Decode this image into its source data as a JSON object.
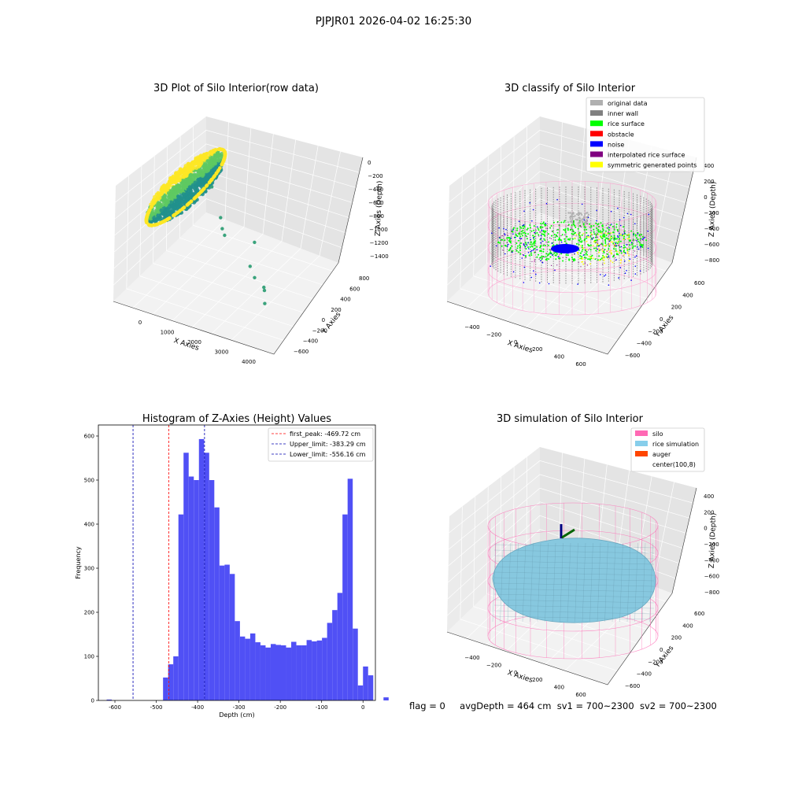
{
  "suptitle": "PJPJR01 2026-04-02 16:25:30",
  "footer": {
    "flag": "flag = 0",
    "avg": "avgDepth = 464 cm",
    "sv1": "sv1 = 700~2300",
    "sv2": "sv2 = 700~2300"
  },
  "colors": {
    "grid": "#d9d9d9",
    "pane_left": "#ebebeb",
    "pane_right": "#e4e4e4",
    "pane_floor": "#f2f2f2"
  },
  "chart_data": [
    {
      "type": "scatter",
      "title": "3D Plot of Silo Interior(row data)",
      "xlabel": "X Axies",
      "ylabel": "Y Axies",
      "zlabel": "Z Axies (Depth)",
      "x_ticks": [
        "0",
        "1000",
        "2000",
        "3000",
        "4000"
      ],
      "y_ticks": [
        "−600",
        "−400",
        "−200",
        "0",
        "200",
        "400",
        "600",
        "800"
      ],
      "z_ticks": [
        "0",
        "−200",
        "−400",
        "−600",
        "−800",
        "−1000",
        "−1200",
        "−1400"
      ],
      "colormap": [
        "#440154",
        "#21918c",
        "#5ec962",
        "#fde725"
      ],
      "outliers": [
        {
          "x": 1250,
          "y": 150,
          "z": -320
        },
        {
          "x": 1600,
          "y": 120,
          "z": -820
        },
        {
          "x": 1700,
          "y": 100,
          "z": -880
        },
        {
          "x": 2300,
          "y": 250,
          "z": -1000
        },
        {
          "x": 2500,
          "y": 60,
          "z": -1150
        },
        {
          "x": 2800,
          "y": -40,
          "z": -1180
        },
        {
          "x": 3100,
          "y": -60,
          "z": -1250
        },
        {
          "x": 3150,
          "y": -80,
          "z": -1270
        },
        {
          "x": 3400,
          "y": -220,
          "z": -1300
        },
        {
          "x": 900,
          "y": 500,
          "z": -1080
        }
      ]
    },
    {
      "type": "scatter",
      "title": "3D classify of Silo Interior",
      "xlabel": "X Axies",
      "ylabel": "Y Axies",
      "zlabel": "Z Axies (Depth)",
      "x_ticks": [
        "−400",
        "−200",
        "0",
        "200",
        "400",
        "600"
      ],
      "y_ticks": [
        "−600",
        "−400",
        "−200",
        "0",
        "200",
        "400",
        "600"
      ],
      "z_ticks": [
        "400",
        "200",
        "0",
        "−200",
        "−400",
        "−600",
        "−800"
      ],
      "legend": [
        {
          "label": "original data",
          "color": "#b0b0b0"
        },
        {
          "label": "inner wall",
          "color": "#808080"
        },
        {
          "label": "rice surface",
          "color": "#00ff00"
        },
        {
          "label": "obstacle",
          "color": "#ff0000"
        },
        {
          "label": "noise",
          "color": "#0000ff"
        },
        {
          "label": "interpolated rice surface",
          "color": "#800080"
        },
        {
          "label": "symmetric generated points",
          "color": "#ffff00"
        }
      ],
      "legend_loc": "upper right"
    },
    {
      "type": "bar",
      "title": "Histogram of Z-Axies (Height) Values",
      "xlabel": "Depth (cm)",
      "ylabel": "Frequency",
      "xlim": [
        -640,
        30
      ],
      "ylim": [
        0,
        625
      ],
      "x_ticks": [
        -600,
        -500,
        -400,
        -300,
        -200,
        -100,
        0
      ],
      "y_ticks": [
        0,
        100,
        200,
        300,
        400,
        500,
        600
      ],
      "bin_start": -620,
      "bin_width": 12.4,
      "values": [
        2,
        0,
        0,
        0,
        0,
        0,
        0,
        0,
        0,
        0,
        0,
        52,
        82,
        100,
        422,
        562,
        508,
        500,
        593,
        562,
        500,
        438,
        306,
        308,
        287,
        180,
        145,
        140,
        152,
        132,
        125,
        120,
        128,
        126,
        125,
        120,
        133,
        125,
        125,
        137,
        134,
        136,
        142,
        176,
        205,
        244,
        422,
        503,
        163,
        34,
        77,
        57,
        0,
        0,
        7
      ],
      "bar_color": "#5050f5",
      "vlines": [
        {
          "x": -469.72,
          "label": "first_peak: -469.72 cm",
          "color": "#ff0000"
        },
        {
          "x": -383.29,
          "label": "Upper_limit: -383.29 cm",
          "color": "#0000b0"
        },
        {
          "x": -556.16,
          "label": "Lower_limit: -556.16 cm",
          "color": "#0000b0"
        }
      ],
      "legend_loc": "upper right"
    },
    {
      "type": "scatter",
      "title": "3D simulation of Silo Interior",
      "xlabel": "X Axies",
      "ylabel": "Y Axies",
      "zlabel": "Z Axies (Depth)",
      "x_ticks": [
        "−400",
        "−200",
        "0",
        "200",
        "400",
        "600"
      ],
      "y_ticks": [
        "−600",
        "−400",
        "−200",
        "0",
        "200",
        "400",
        "600"
      ],
      "z_ticks": [
        "400",
        "200",
        "0",
        "−200",
        "−400",
        "−600",
        "−800"
      ],
      "legend": [
        {
          "label": "silo",
          "color": "#ff69b4"
        },
        {
          "label": "rice simulation",
          "color": "#87ceeb"
        },
        {
          "label": "auger",
          "color": "#ff4500"
        },
        {
          "label": "center(100,8)",
          "color": "#ffffff"
        }
      ],
      "legend_loc": "upper right"
    }
  ]
}
